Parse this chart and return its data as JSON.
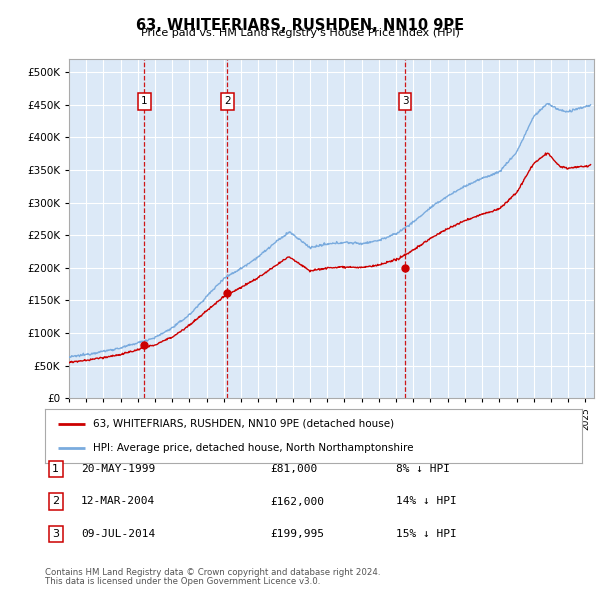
{
  "title": "63, WHITEFRIARS, RUSHDEN, NN10 9PE",
  "subtitle": "Price paid vs. HM Land Registry's House Price Index (HPI)",
  "red_label": "63, WHITEFRIARS, RUSHDEN, NN10 9PE (detached house)",
  "blue_label": "HPI: Average price, detached house, North Northamptonshire",
  "footer_line1": "Contains HM Land Registry data © Crown copyright and database right 2024.",
  "footer_line2": "This data is licensed under the Open Government Licence v3.0.",
  "sales": [
    {
      "num": 1,
      "date": "20-MAY-1999",
      "price": 81000,
      "pct": "8% ↓ HPI",
      "year": 1999.38
    },
    {
      "num": 2,
      "date": "12-MAR-2004",
      "price": 162000,
      "pct": "14% ↓ HPI",
      "year": 2004.19
    },
    {
      "num": 3,
      "date": "09-JUL-2014",
      "price": 199995,
      "pct": "15% ↓ HPI",
      "year": 2014.52
    }
  ],
  "xlim": [
    1995,
    2025.5
  ],
  "ylim": [
    0,
    520000
  ],
  "yticks": [
    0,
    50000,
    100000,
    150000,
    200000,
    250000,
    300000,
    350000,
    400000,
    450000,
    500000
  ],
  "plot_bg": "#dce9f7",
  "grid_color": "#ffffff",
  "red_color": "#cc0000",
  "blue_color": "#7aabde",
  "fig_width": 6.0,
  "fig_height": 5.9
}
